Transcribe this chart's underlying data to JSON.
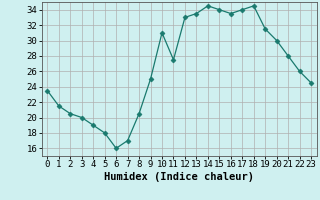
{
  "x": [
    0,
    1,
    2,
    3,
    4,
    5,
    6,
    7,
    8,
    9,
    10,
    11,
    12,
    13,
    14,
    15,
    16,
    17,
    18,
    19,
    20,
    21,
    22,
    23
  ],
  "y": [
    23.5,
    21.5,
    20.5,
    20,
    19,
    18,
    16,
    17,
    20.5,
    25,
    31,
    27.5,
    33,
    33.5,
    34.5,
    34,
    33.5,
    34,
    34.5,
    31.5,
    30,
    28,
    26,
    24.5
  ],
  "line_color": "#1a7a6e",
  "marker": "D",
  "marker_size": 2.5,
  "bg_color": "#cff0f0",
  "grid_color": "#b0b0b0",
  "xlabel": "Humidex (Indice chaleur)",
  "ylim": [
    15,
    35
  ],
  "xlim": [
    -0.5,
    23.5
  ],
  "yticks": [
    16,
    18,
    20,
    22,
    24,
    26,
    28,
    30,
    32,
    34
  ],
  "xticks": [
    0,
    1,
    2,
    3,
    4,
    5,
    6,
    7,
    8,
    9,
    10,
    11,
    12,
    13,
    14,
    15,
    16,
    17,
    18,
    19,
    20,
    21,
    22,
    23
  ],
  "xtick_labels": [
    "0",
    "1",
    "2",
    "3",
    "4",
    "5",
    "6",
    "7",
    "8",
    "9",
    "10",
    "11",
    "12",
    "13",
    "14",
    "15",
    "16",
    "17",
    "18",
    "19",
    "20",
    "21",
    "22",
    "23"
  ],
  "tick_fontsize": 6.5,
  "xlabel_fontsize": 7.5
}
